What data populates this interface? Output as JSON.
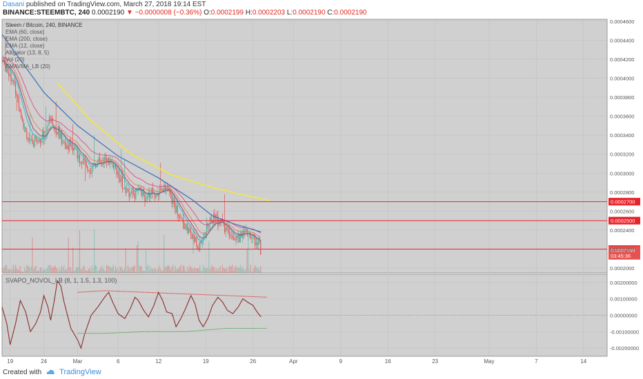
{
  "header": {
    "user": "Dasani",
    "published_text": "published on TradingView.com, March 27, 2018 19:14 EST",
    "symbol": "BINANCE:STEEMBTC, 240",
    "last": "0.0002190",
    "change": "−0.0000008 (−0.36%)",
    "o_label": "O:",
    "o": "0.0002199",
    "h_label": "H:",
    "h": "0.0002203",
    "l_label": "L:",
    "l": "0.0002190",
    "c_label": "C:",
    "c": "0.0002190"
  },
  "legend": [
    "Steem / Bitcoin, 240, BINANCE",
    "EMA (60, close)",
    "EMA (200, close)",
    "EMA (12, close)",
    "Alligator (13, 8, 5)",
    "Vol (20)",
    "EMAVMA_LB (20)"
  ],
  "osc_label": "SVAPO_NOVOL_LB (8, 1, 1.5, 1.3, 100)",
  "footer": {
    "created": "Created with",
    "brand": "TradingView"
  },
  "colors": {
    "pane_bg": "#d0d0d0",
    "up": "#4fb39e",
    "down": "#e5524f",
    "ema60": "#3a6fb5",
    "ema200": "#f2e83a",
    "ema12": "#9c3a6c",
    "alligator_jaw": "#e04a86",
    "alligator_teeth": "#e67a55",
    "alligator_lips": "#3fc0c8",
    "hline": "#e8242b",
    "osc": "#8a2d2d",
    "osc_upper": "#e8242b",
    "osc_lower": "#3fa33f"
  },
  "chart_data": [
    {
      "type": "candlestick",
      "title": "Steem / Bitcoin, 240, BINANCE",
      "ylim": [
        0.000195,
        0.000462
      ],
      "y_ticks": [
        "0.0004600",
        "0.0004400",
        "0.0004200",
        "0.0004000",
        "0.0003800",
        "0.0003600",
        "0.0003400",
        "0.0003200",
        "0.0003000",
        "0.0002800",
        "0.0002600",
        "0.0002400",
        "0.0002200",
        "0.0002000"
      ],
      "x_ticks": [
        "19",
        "24",
        "Mar",
        "6",
        "12",
        "19",
        "26",
        "Apr",
        "9",
        "16",
        "23",
        "May",
        "7",
        "14"
      ],
      "x_tick_days": [
        0,
        5,
        10,
        16,
        22,
        29,
        36,
        42,
        49,
        56,
        63,
        71,
        78,
        85
      ],
      "x_range_days": [
        -1.2,
        88.5
      ],
      "last_day": 37.2,
      "close_path": [
        [
          -1.2,
          0.000418
        ],
        [
          0,
          0.000405
        ],
        [
          1,
          0.000382
        ],
        [
          2,
          0.000352
        ],
        [
          3,
          0.00033
        ],
        [
          4,
          0.000335
        ],
        [
          5,
          0.00034
        ],
        [
          6,
          0.000358
        ],
        [
          7,
          0.000346
        ],
        [
          8,
          0.00033
        ],
        [
          9,
          0.00033
        ],
        [
          10,
          0.000318
        ],
        [
          11,
          0.00031
        ],
        [
          12,
          0.000304
        ],
        [
          13,
          0.000312
        ],
        [
          14,
          0.000316
        ],
        [
          15,
          0.00031
        ],
        [
          16,
          0.000298
        ],
        [
          17,
          0.000284
        ],
        [
          18,
          0.000278
        ],
        [
          19,
          0.00028
        ],
        [
          20,
          0.000276
        ],
        [
          21,
          0.000282
        ],
        [
          22,
          0.000278
        ],
        [
          23,
          0.000288
        ],
        [
          24,
          0.00027
        ],
        [
          25,
          0.000258
        ],
        [
          26,
          0.000245
        ],
        [
          27,
          0.000232
        ],
        [
          28,
          0.000222
        ],
        [
          29,
          0.00024
        ],
        [
          30,
          0.000252
        ],
        [
          31,
          0.00025
        ],
        [
          32,
          0.00024
        ],
        [
          33,
          0.000236
        ],
        [
          34,
          0.000232
        ],
        [
          35,
          0.000236
        ],
        [
          36,
          0.000232
        ],
        [
          37,
          0.000222
        ],
        [
          37.2,
          0.000219
        ]
      ],
      "ema60_path": [
        [
          -1.2,
          0.000446
        ],
        [
          5,
          0.000385
        ],
        [
          10,
          0.00035
        ],
        [
          16,
          0.000318
        ],
        [
          22,
          0.000295
        ],
        [
          27,
          0.000272
        ],
        [
          30,
          0.000255
        ],
        [
          33,
          0.000247
        ],
        [
          37.2,
          0.000238
        ]
      ],
      "ema200_path": [
        [
          7,
          0.000395
        ],
        [
          12,
          0.000355
        ],
        [
          18,
          0.00032
        ],
        [
          24,
          0.000298
        ],
        [
          30,
          0.000285
        ],
        [
          34,
          0.000278
        ],
        [
          38.5,
          0.000271
        ]
      ],
      "hlines": [
        {
          "label": "0.0002700",
          "value": 0.00027
        },
        {
          "label": "0.0002500",
          "value": 0.00025
        },
        {
          "label": "0.0002200",
          "value": 0.00022
        }
      ],
      "price_badges": [
        {
          "label": "0.0002190",
          "value": 0.000219
        },
        {
          "label": "03:45:36",
          "value": 0.000213
        }
      ]
    },
    {
      "type": "line",
      "title": "SVAPO_NOVOL_LB (8, 1, 1.5, 1.3, 100)",
      "ylim": [
        -0.0025,
        0.0025
      ],
      "y_ticks": [
        "0.00200000",
        "0.00100000",
        "0.00000000",
        "-0.00100000",
        "-0.00200000"
      ],
      "series": [
        {
          "key": "osc",
          "values": [
            [
              -1.2,
              0.0005
            ],
            [
              -0.5,
              -0.0005
            ],
            [
              0,
              -0.0018
            ],
            [
              0.8,
              -0.0005
            ],
            [
              1.5,
              0.0009
            ],
            [
              2.3,
              0.0002
            ],
            [
              3,
              -0.001
            ],
            [
              3.8,
              -0.0005
            ],
            [
              4.5,
              0.0002
            ],
            [
              5,
              0.0012
            ],
            [
              5.6,
              0.0005
            ],
            [
              6,
              -0.0003
            ],
            [
              6.5,
              0.0008
            ],
            [
              7,
              0.0021
            ],
            [
              7.5,
              0.0018
            ],
            [
              8,
              0.0008
            ],
            [
              9,
              -0.0008
            ],
            [
              10,
              -0.0015
            ],
            [
              10.5,
              -0.002
            ],
            [
              11,
              -0.0012
            ],
            [
              12,
              0.0
            ],
            [
              13,
              0.0005
            ],
            [
              14,
              0.0011
            ],
            [
              14.6,
              0.0014
            ],
            [
              15.2,
              0.0008
            ],
            [
              16,
              0.0001
            ],
            [
              17,
              -0.0002
            ],
            [
              17.8,
              0.0004
            ],
            [
              18.5,
              0.0011
            ],
            [
              19,
              0.0009
            ],
            [
              19.8,
              0.0003
            ],
            [
              20.5,
              -0.0001
            ],
            [
              21.3,
              0.0006
            ],
            [
              22,
              0.0014
            ],
            [
              22.6,
              0.0009
            ],
            [
              23.2,
              0.0002
            ],
            [
              24,
              0.0001
            ],
            [
              24.6,
              -0.0007
            ],
            [
              25.3,
              -0.0002
            ],
            [
              26,
              0.0004
            ],
            [
              26.8,
              0.0012
            ],
            [
              27.4,
              0.0007
            ],
            [
              28,
              -0.0003
            ],
            [
              28.6,
              -0.0007
            ],
            [
              29.3,
              -0.0002
            ],
            [
              30,
              0.0006
            ],
            [
              30.8,
              0.0011
            ],
            [
              31.5,
              0.0008
            ],
            [
              32.2,
              0.0003
            ],
            [
              33,
              0.0001
            ],
            [
              33.8,
              0.0005
            ],
            [
              34.5,
              0.001
            ],
            [
              35.2,
              0.0008
            ],
            [
              36,
              0.0006
            ],
            [
              36.6,
              0.0002
            ],
            [
              37.2,
              -0.0001
            ]
          ]
        },
        {
          "key": "osc_upper",
          "values": [
            [
              10,
              0.0014
            ],
            [
              14,
              0.0015
            ],
            [
              20,
              0.0014
            ],
            [
              26,
              0.0013
            ],
            [
              32,
              0.0012
            ],
            [
              38,
              0.0011
            ]
          ]
        },
        {
          "key": "osc_lower",
          "values": [
            [
              10,
              -0.0011
            ],
            [
              14,
              -0.0011
            ],
            [
              20,
              -0.001
            ],
            [
              26,
              -0.001
            ],
            [
              32,
              -0.0008
            ],
            [
              38,
              -0.0008
            ]
          ]
        }
      ]
    }
  ]
}
